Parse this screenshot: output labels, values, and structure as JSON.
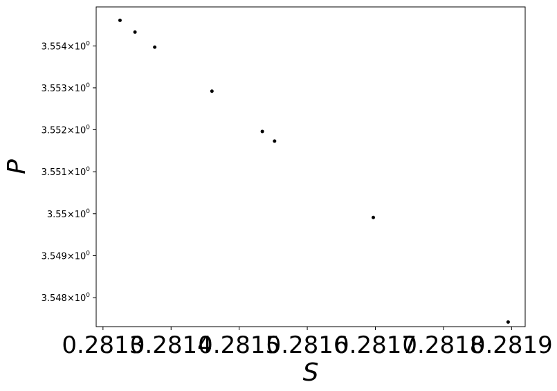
{
  "chart_data": {
    "type": "scatter",
    "xlabel": "S",
    "ylabel": "P",
    "y_scale": "log",
    "xlim": [
      0.28129,
      0.28192
    ],
    "ylim": [
      3.54731,
      3.55493
    ],
    "x_ticks": [
      {
        "value": 0.2813,
        "label": "0.2813"
      },
      {
        "value": 0.2814,
        "label": "0.2814"
      },
      {
        "value": 0.2815,
        "label": "0.2815"
      },
      {
        "value": 0.2816,
        "label": "0.2816"
      },
      {
        "value": 0.2817,
        "label": "0.2817"
      },
      {
        "value": 0.2818,
        "label": "0.2818"
      },
      {
        "value": 0.2819,
        "label": "0.2819"
      }
    ],
    "y_ticks": [
      {
        "value": 3.554,
        "mantissa": "3.554",
        "base": "10",
        "exp": "0"
      },
      {
        "value": 3.553,
        "mantissa": "3.553",
        "base": "10",
        "exp": "0"
      },
      {
        "value": 3.552,
        "mantissa": "3.552",
        "base": "10",
        "exp": "0"
      },
      {
        "value": 3.551,
        "mantissa": "3.551",
        "base": "10",
        "exp": "0"
      },
      {
        "value": 3.55,
        "mantissa": "3.55",
        "base": "10",
        "exp": "0"
      },
      {
        "value": 3.549,
        "mantissa": "3.549",
        "base": "10",
        "exp": "0"
      },
      {
        "value": 3.548,
        "mantissa": "3.548",
        "base": "10",
        "exp": "0"
      }
    ],
    "points": [
      {
        "x": 0.281325,
        "y": 3.55461
      },
      {
        "x": 0.281347,
        "y": 3.55433
      },
      {
        "x": 0.281376,
        "y": 3.55397
      },
      {
        "x": 0.28146,
        "y": 3.55292
      },
      {
        "x": 0.281534,
        "y": 3.55196
      },
      {
        "x": 0.281552,
        "y": 3.55173
      },
      {
        "x": 0.281697,
        "y": 3.54991
      },
      {
        "x": 0.281895,
        "y": 3.54742
      }
    ],
    "marker_color": "#000000",
    "grid": false,
    "legend": "none"
  }
}
